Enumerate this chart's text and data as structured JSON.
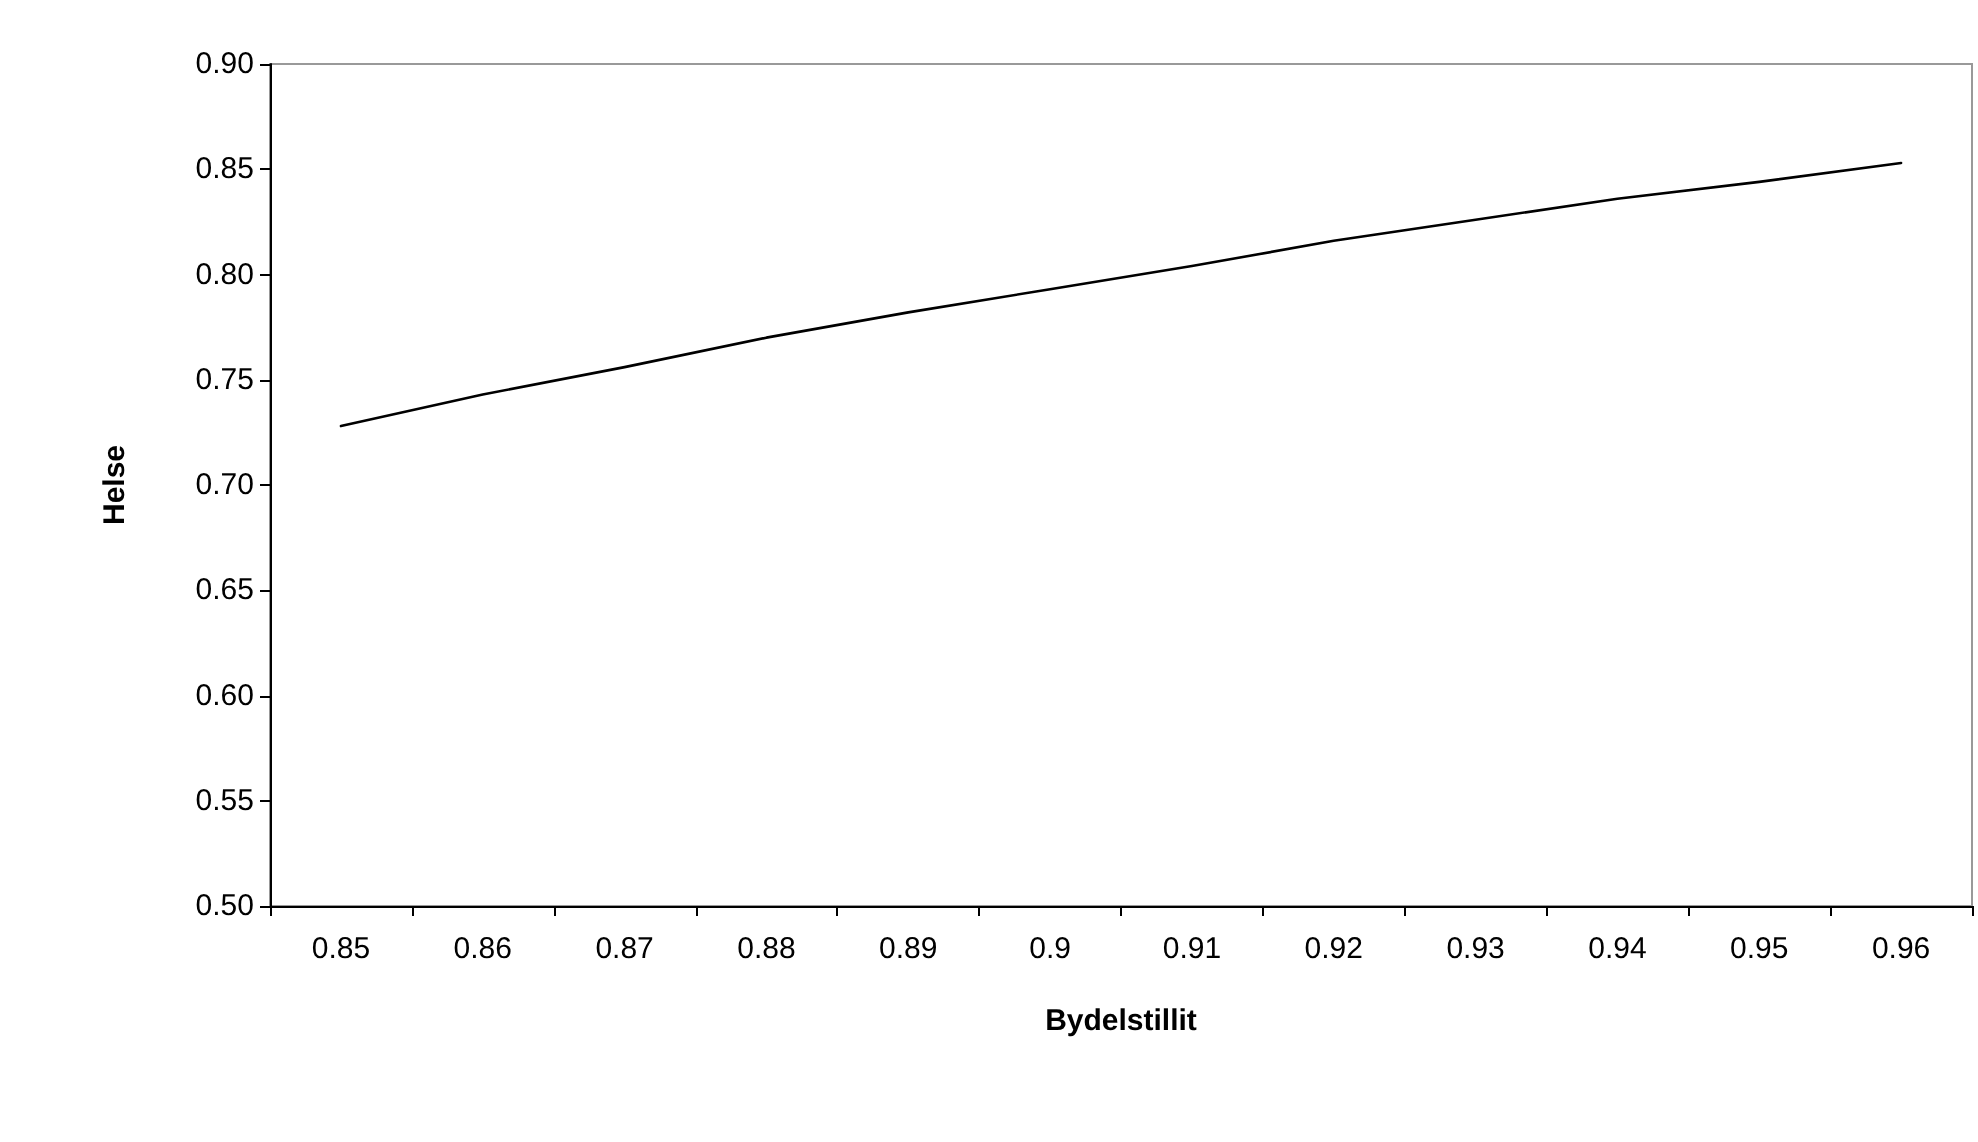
{
  "chart_data": {
    "type": "line",
    "xlabel": "Bydelstillit",
    "ylabel": "Helse",
    "categories": [
      "0.85",
      "0.86",
      "0.87",
      "0.88",
      "0.89",
      "0.9",
      "0.91",
      "0.92",
      "0.93",
      "0.94",
      "0.95",
      "0.96"
    ],
    "series": [
      {
        "color": "#000000",
        "values": [
          0.728,
          0.743,
          0.756,
          0.77,
          0.782,
          0.793,
          0.804,
          0.816,
          0.826,
          0.836,
          0.844,
          0.853
        ]
      }
    ],
    "ylim": [
      0.5,
      0.9
    ],
    "yticks": [
      {
        "value": 0.5,
        "label": "0.50"
      },
      {
        "value": 0.55,
        "label": "0.55"
      },
      {
        "value": 0.6,
        "label": "0.60"
      },
      {
        "value": 0.65,
        "label": "0.65"
      },
      {
        "value": 0.7,
        "label": "0.70"
      },
      {
        "value": 0.75,
        "label": "0.75"
      },
      {
        "value": 0.8,
        "label": "0.80"
      },
      {
        "value": 0.85,
        "label": "0.85"
      },
      {
        "value": 0.9,
        "label": "0.90"
      }
    ],
    "grid": false,
    "marker": "none",
    "line_style": "solid"
  }
}
